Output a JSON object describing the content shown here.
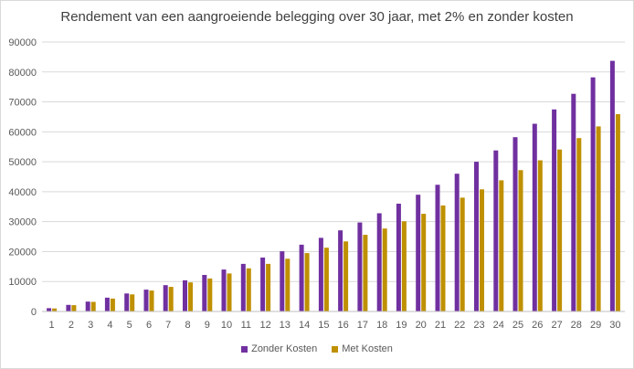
{
  "chart_data": {
    "type": "bar",
    "title": "Rendement van een aangroeiende belegging over 30 jaar, met 2% en zonder kosten",
    "xlabel": "",
    "ylabel": "",
    "ylim": [
      0,
      90000
    ],
    "yticks": [
      0,
      10000,
      20000,
      30000,
      40000,
      50000,
      60000,
      70000,
      80000,
      90000
    ],
    "grid": true,
    "legend_position": "bottom",
    "categories": [
      "1",
      "2",
      "3",
      "4",
      "5",
      "6",
      "7",
      "8",
      "9",
      "10",
      "11",
      "12",
      "13",
      "14",
      "15",
      "16",
      "17",
      "18",
      "19",
      "20",
      "21",
      "22",
      "23",
      "24",
      "25",
      "26",
      "27",
      "28",
      "29",
      "30"
    ],
    "series": [
      {
        "name": "Zonder Kosten",
        "color": "#7030a0",
        "values": [
          1100,
          2200,
          3300,
          4600,
          6000,
          7300,
          8800,
          10400,
          12200,
          14000,
          15900,
          18000,
          20100,
          22300,
          24600,
          27100,
          29700,
          32800,
          36000,
          39000,
          42300,
          46000,
          50000,
          53800,
          58200,
          62700,
          67500,
          72700,
          78200,
          83700
        ]
      },
      {
        "name": "Met Kosten",
        "color": "#bf9000",
        "values": [
          1000,
          2100,
          3200,
          4300,
          5700,
          7000,
          8200,
          9700,
          11000,
          12700,
          14400,
          15900,
          17600,
          19500,
          21300,
          23400,
          25600,
          27700,
          30100,
          32600,
          35400,
          38000,
          40800,
          43800,
          47200,
          50500,
          54100,
          57900,
          61800,
          65900
        ]
      }
    ]
  }
}
